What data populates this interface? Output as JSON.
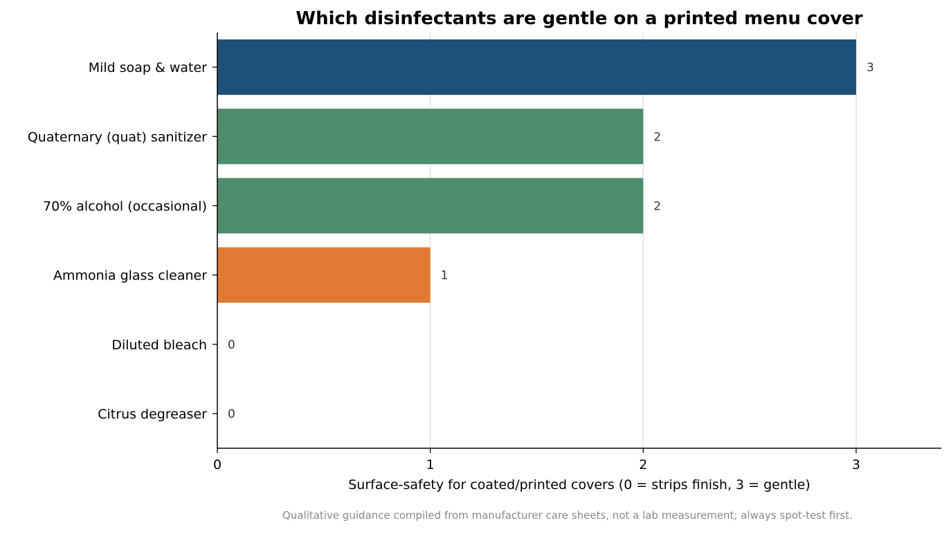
{
  "chart_data": {
    "type": "bar",
    "orientation": "horizontal",
    "title": "Which disinfectants are gentle on a printed menu cover",
    "xlabel": "Surface-safety for coated/printed covers  (0 = strips finish, 3 = gentle)",
    "ylabel": "",
    "footnote": "Qualitative guidance compiled from manufacturer care sheets, not a lab measurement; always spot-test first.",
    "categories": [
      "Mild soap & water",
      "Quaternary (quat) sanitizer",
      "70% alcohol (occasional)",
      "Ammonia glass cleaner",
      "Diluted bleach",
      "Citrus degreaser"
    ],
    "values": [
      3,
      2,
      2,
      1,
      0,
      0
    ],
    "value_labels": [
      "3",
      "2",
      "2",
      "1",
      "0",
      "0"
    ],
    "bar_colors": [
      "#1f5078",
      "#4e8c6e",
      "#4e8c6e",
      "#e07a32",
      "#d4483b",
      "#d4483b"
    ],
    "xlim": [
      0,
      3.4
    ],
    "xticks": [
      0,
      1,
      2,
      3
    ],
    "xtick_labels": [
      "0",
      "1",
      "2",
      "3"
    ],
    "grid": "vertical",
    "legend": "none"
  }
}
